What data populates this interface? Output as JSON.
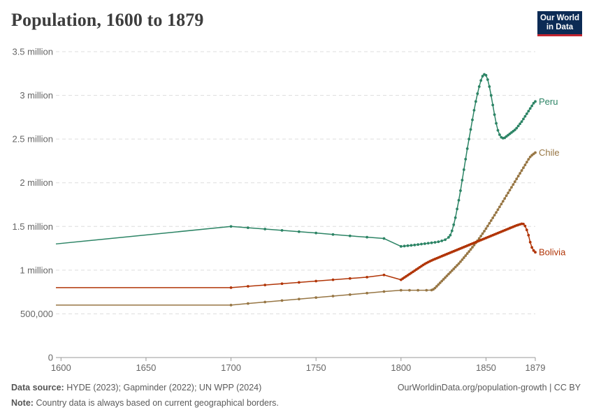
{
  "chart_data": {
    "type": "line",
    "title": "Population, 1600 to 1879",
    "xlabel": "",
    "ylabel": "",
    "xlim": [
      1597,
      1879
    ],
    "ylim": [
      0,
      3500000
    ],
    "x_ticks": [
      {
        "value": 1600,
        "label": "1600"
      },
      {
        "value": 1650,
        "label": "1650"
      },
      {
        "value": 1700,
        "label": "1700"
      },
      {
        "value": 1750,
        "label": "1750"
      },
      {
        "value": 1800,
        "label": "1800"
      },
      {
        "value": 1850,
        "label": "1850"
      },
      {
        "value": 1879,
        "label": "1879"
      }
    ],
    "y_ticks": [
      {
        "value": 0,
        "label": "0"
      },
      {
        "value": 500000,
        "label": "500,000"
      },
      {
        "value": 1000000,
        "label": "1 million"
      },
      {
        "value": 1500000,
        "label": "1.5 million"
      },
      {
        "value": 2000000,
        "label": "2 million"
      },
      {
        "value": 2500000,
        "label": "2.5 million"
      },
      {
        "value": 3000000,
        "label": "3 million"
      },
      {
        "value": 3500000,
        "label": "3.5 million"
      }
    ],
    "grid": true,
    "legend": "inline labels at line ends (right)",
    "series": [
      {
        "name": "Peru",
        "color": "#2c8465",
        "points": [
          [
            1597,
            1300000
          ],
          [
            1700,
            1500000
          ],
          [
            1710,
            1485000
          ],
          [
            1720,
            1470000
          ],
          [
            1730,
            1455000
          ],
          [
            1740,
            1440000
          ],
          [
            1750,
            1425000
          ],
          [
            1760,
            1408000
          ],
          [
            1770,
            1392000
          ],
          [
            1780,
            1377000
          ],
          [
            1790,
            1362000
          ],
          [
            1800,
            1272000
          ],
          [
            1802,
            1276000
          ],
          [
            1804,
            1280000
          ],
          [
            1806,
            1284000
          ],
          [
            1808,
            1288000
          ],
          [
            1810,
            1293000
          ],
          [
            1812,
            1298000
          ],
          [
            1814,
            1303000
          ],
          [
            1816,
            1308000
          ],
          [
            1818,
            1313000
          ],
          [
            1820,
            1318000
          ],
          [
            1822,
            1325000
          ],
          [
            1824,
            1335000
          ],
          [
            1826,
            1348000
          ],
          [
            1828,
            1375000
          ],
          [
            1829,
            1400000
          ],
          [
            1830,
            1450000
          ],
          [
            1831,
            1520000
          ],
          [
            1832,
            1600000
          ],
          [
            1833,
            1700000
          ],
          [
            1834,
            1800000
          ],
          [
            1835,
            1910000
          ],
          [
            1836,
            2030000
          ],
          [
            1837,
            2150000
          ],
          [
            1838,
            2270000
          ],
          [
            1839,
            2390000
          ],
          [
            1840,
            2500000
          ],
          [
            1841,
            2610000
          ],
          [
            1842,
            2720000
          ],
          [
            1843,
            2830000
          ],
          [
            1844,
            2930000
          ],
          [
            1845,
            3020000
          ],
          [
            1846,
            3100000
          ],
          [
            1847,
            3170000
          ],
          [
            1848,
            3220000
          ],
          [
            1849,
            3240000
          ],
          [
            1850,
            3230000
          ],
          [
            1851,
            3180000
          ],
          [
            1852,
            3100000
          ],
          [
            1853,
            3000000
          ],
          [
            1854,
            2890000
          ],
          [
            1855,
            2780000
          ],
          [
            1856,
            2680000
          ],
          [
            1857,
            2600000
          ],
          [
            1858,
            2550000
          ],
          [
            1859,
            2520000
          ],
          [
            1860,
            2510000
          ],
          [
            1861,
            2515000
          ],
          [
            1862,
            2530000
          ],
          [
            1863,
            2545000
          ],
          [
            1864,
            2560000
          ],
          [
            1865,
            2575000
          ],
          [
            1866,
            2590000
          ],
          [
            1867,
            2605000
          ],
          [
            1868,
            2625000
          ],
          [
            1869,
            2650000
          ],
          [
            1870,
            2675000
          ],
          [
            1871,
            2700000
          ],
          [
            1872,
            2730000
          ],
          [
            1873,
            2760000
          ],
          [
            1874,
            2790000
          ],
          [
            1875,
            2820000
          ],
          [
            1876,
            2850000
          ],
          [
            1877,
            2880000
          ],
          [
            1878,
            2910000
          ],
          [
            1879,
            2930000
          ]
        ]
      },
      {
        "name": "Chile",
        "color": "#977644",
        "points": [
          [
            1597,
            600000
          ],
          [
            1700,
            600000
          ],
          [
            1710,
            618000
          ],
          [
            1720,
            635000
          ],
          [
            1730,
            652000
          ],
          [
            1740,
            669000
          ],
          [
            1750,
            686000
          ],
          [
            1760,
            703000
          ],
          [
            1770,
            720000
          ],
          [
            1780,
            737000
          ],
          [
            1790,
            755000
          ],
          [
            1800,
            770000
          ],
          [
            1805,
            770000
          ],
          [
            1810,
            770000
          ],
          [
            1815,
            770000
          ],
          [
            1818,
            772000
          ],
          [
            1819,
            780000
          ],
          [
            1820,
            795000
          ],
          [
            1821,
            815000
          ],
          [
            1822,
            835000
          ],
          [
            1823,
            855000
          ],
          [
            1824,
            875000
          ],
          [
            1825,
            895000
          ],
          [
            1826,
            915000
          ],
          [
            1827,
            935000
          ],
          [
            1828,
            955000
          ],
          [
            1829,
            975000
          ],
          [
            1830,
            995000
          ],
          [
            1831,
            1015000
          ],
          [
            1832,
            1035000
          ],
          [
            1833,
            1055000
          ],
          [
            1834,
            1075000
          ],
          [
            1835,
            1097000
          ],
          [
            1836,
            1120000
          ],
          [
            1837,
            1143000
          ],
          [
            1838,
            1166000
          ],
          [
            1839,
            1190000
          ],
          [
            1840,
            1213000
          ],
          [
            1841,
            1237000
          ],
          [
            1842,
            1262000
          ],
          [
            1843,
            1287000
          ],
          [
            1844,
            1312000
          ],
          [
            1845,
            1337000
          ],
          [
            1846,
            1363000
          ],
          [
            1847,
            1390000
          ],
          [
            1848,
            1418000
          ],
          [
            1849,
            1446000
          ],
          [
            1850,
            1475000
          ],
          [
            1851,
            1505000
          ],
          [
            1852,
            1536000
          ],
          [
            1853,
            1567000
          ],
          [
            1854,
            1598000
          ],
          [
            1855,
            1629000
          ],
          [
            1856,
            1660000
          ],
          [
            1857,
            1692000
          ],
          [
            1858,
            1724000
          ],
          [
            1859,
            1756000
          ],
          [
            1860,
            1788000
          ],
          [
            1861,
            1820000
          ],
          [
            1862,
            1852000
          ],
          [
            1863,
            1884000
          ],
          [
            1864,
            1916000
          ],
          [
            1865,
            1948000
          ],
          [
            1866,
            1980000
          ],
          [
            1867,
            2012000
          ],
          [
            1868,
            2044000
          ],
          [
            1869,
            2076000
          ],
          [
            1870,
            2108000
          ],
          [
            1871,
            2140000
          ],
          [
            1872,
            2172000
          ],
          [
            1873,
            2204000
          ],
          [
            1874,
            2236000
          ],
          [
            1875,
            2268000
          ],
          [
            1876,
            2295000
          ],
          [
            1877,
            2315000
          ],
          [
            1878,
            2330000
          ],
          [
            1879,
            2345000
          ]
        ]
      },
      {
        "name": "Bolivia",
        "color": "#b13507",
        "points": [
          [
            1597,
            800000
          ],
          [
            1700,
            800000
          ],
          [
            1710,
            815000
          ],
          [
            1720,
            830000
          ],
          [
            1730,
            845000
          ],
          [
            1740,
            860000
          ],
          [
            1750,
            875000
          ],
          [
            1760,
            890000
          ],
          [
            1770,
            905000
          ],
          [
            1780,
            920000
          ],
          [
            1790,
            945000
          ],
          [
            1800,
            890000
          ],
          [
            1801,
            903000
          ],
          [
            1802,
            916000
          ],
          [
            1803,
            929000
          ],
          [
            1804,
            942000
          ],
          [
            1805,
            955000
          ],
          [
            1806,
            968000
          ],
          [
            1807,
            981000
          ],
          [
            1808,
            994000
          ],
          [
            1809,
            1007000
          ],
          [
            1810,
            1020000
          ],
          [
            1811,
            1033000
          ],
          [
            1812,
            1046000
          ],
          [
            1813,
            1059000
          ],
          [
            1814,
            1071000
          ],
          [
            1815,
            1082000
          ],
          [
            1816,
            1092000
          ],
          [
            1817,
            1102000
          ],
          [
            1818,
            1111000
          ],
          [
            1819,
            1120000
          ],
          [
            1820,
            1128000
          ],
          [
            1821,
            1136000
          ],
          [
            1822,
            1144000
          ],
          [
            1823,
            1152000
          ],
          [
            1824,
            1160000
          ],
          [
            1825,
            1168000
          ],
          [
            1826,
            1176000
          ],
          [
            1827,
            1184000
          ],
          [
            1828,
            1192000
          ],
          [
            1829,
            1200000
          ],
          [
            1830,
            1208000
          ],
          [
            1831,
            1216000
          ],
          [
            1832,
            1224000
          ],
          [
            1833,
            1232000
          ],
          [
            1834,
            1240000
          ],
          [
            1835,
            1248000
          ],
          [
            1836,
            1256000
          ],
          [
            1837,
            1264000
          ],
          [
            1838,
            1272000
          ],
          [
            1839,
            1280000
          ],
          [
            1840,
            1288000
          ],
          [
            1841,
            1296000
          ],
          [
            1842,
            1304000
          ],
          [
            1843,
            1312000
          ],
          [
            1844,
            1320000
          ],
          [
            1845,
            1328000
          ],
          [
            1846,
            1336000
          ],
          [
            1847,
            1344000
          ],
          [
            1848,
            1352000
          ],
          [
            1849,
            1360000
          ],
          [
            1850,
            1368000
          ],
          [
            1851,
            1376000
          ],
          [
            1852,
            1384000
          ],
          [
            1853,
            1392000
          ],
          [
            1854,
            1400000
          ],
          [
            1855,
            1408000
          ],
          [
            1856,
            1416000
          ],
          [
            1857,
            1424000
          ],
          [
            1858,
            1432000
          ],
          [
            1859,
            1440000
          ],
          [
            1860,
            1448000
          ],
          [
            1861,
            1456000
          ],
          [
            1862,
            1464000
          ],
          [
            1863,
            1472000
          ],
          [
            1864,
            1480000
          ],
          [
            1865,
            1488000
          ],
          [
            1866,
            1496000
          ],
          [
            1867,
            1504000
          ],
          [
            1868,
            1512000
          ],
          [
            1869,
            1518000
          ],
          [
            1870,
            1524000
          ],
          [
            1871,
            1530000
          ],
          [
            1872,
            1528000
          ],
          [
            1873,
            1505000
          ],
          [
            1874,
            1460000
          ],
          [
            1875,
            1400000
          ],
          [
            1876,
            1320000
          ],
          [
            1877,
            1260000
          ],
          [
            1878,
            1225000
          ],
          [
            1879,
            1205000
          ]
        ]
      }
    ]
  },
  "logo": {
    "line1": "Our World",
    "line2": "in Data"
  },
  "footer": {
    "source_label": "Data source:",
    "source_text": "HYDE (2023); Gapminder (2022); UN WPP (2024)",
    "note_label": "Note:",
    "note_text": "Country data is always based on current geographical borders.",
    "credit": "OurWorldinData.org/population-growth | CC BY"
  }
}
